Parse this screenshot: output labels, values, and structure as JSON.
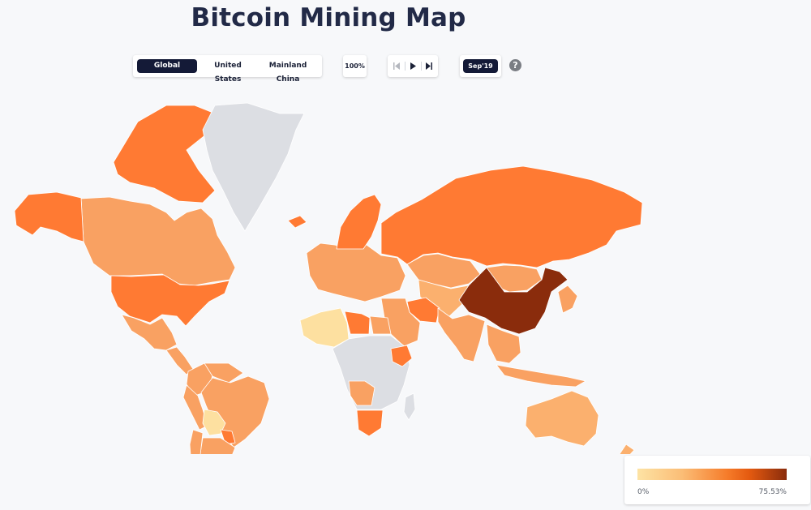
{
  "header": {
    "title": "Bitcoin Mining Map"
  },
  "region_tabs": [
    {
      "label": "Global",
      "active": true
    },
    {
      "label": "United States",
      "active": false
    },
    {
      "label": "Mainland China",
      "active": false
    }
  ],
  "zoom": {
    "value": "100%"
  },
  "playback": {
    "buttons": [
      "skip-back-icon",
      "play-icon",
      "skip-forward-icon"
    ],
    "date_label": "Sep'19"
  },
  "help": {
    "label": "?"
  },
  "legend": {
    "min_label": "0%",
    "max_label": "75.53%"
  },
  "colors": {
    "no_data": "#dcdee3",
    "very_low": "#fde0a0",
    "low": "#fbb06e",
    "medium": "#f9a162",
    "high": "#ff7a33",
    "very_high": "#8a2c0c",
    "ui_dark": "#141a37"
  },
  "countries": [
    {
      "name": "Canada",
      "level": "medium"
    },
    {
      "name": "Canadian Arctic Islands",
      "level": "high"
    },
    {
      "name": "Alaska",
      "level": "high"
    },
    {
      "name": "United States",
      "level": "high"
    },
    {
      "name": "Mexico",
      "level": "medium"
    },
    {
      "name": "Central America",
      "level": "medium"
    },
    {
      "name": "Greenland",
      "level": "no_data"
    },
    {
      "name": "Iceland",
      "level": "high"
    },
    {
      "name": "Colombia",
      "level": "medium"
    },
    {
      "name": "Venezuela",
      "level": "medium"
    },
    {
      "name": "Brazil",
      "level": "medium"
    },
    {
      "name": "Peru",
      "level": "medium"
    },
    {
      "name": "Bolivia",
      "level": "very_low"
    },
    {
      "name": "Paraguay",
      "level": "high"
    },
    {
      "name": "Argentina",
      "level": "medium"
    },
    {
      "name": "Chile",
      "level": "medium"
    },
    {
      "name": "Europe",
      "level": "medium"
    },
    {
      "name": "Scandinavia",
      "level": "high"
    },
    {
      "name": "Russia",
      "level": "high"
    },
    {
      "name": "Kazakhstan",
      "level": "medium"
    },
    {
      "name": "Central Asia",
      "level": "low"
    },
    {
      "name": "Mongolia",
      "level": "medium"
    },
    {
      "name": "China",
      "level": "very_high"
    },
    {
      "name": "Iran",
      "level": "high"
    },
    {
      "name": "Middle East",
      "level": "medium"
    },
    {
      "name": "South Asia",
      "level": "medium"
    },
    {
      "name": "Southeast Asia",
      "level": "medium"
    },
    {
      "name": "Japan",
      "level": "medium"
    },
    {
      "name": "Indonesia",
      "level": "medium"
    },
    {
      "name": "Australia",
      "level": "low"
    },
    {
      "name": "New Zealand",
      "level": "low"
    },
    {
      "name": "North Africa West",
      "level": "very_low"
    },
    {
      "name": "Libya",
      "level": "high"
    },
    {
      "name": "Egypt",
      "level": "medium"
    },
    {
      "name": "Central Africa",
      "level": "no_data"
    },
    {
      "name": "Ethiopia",
      "level": "high"
    },
    {
      "name": "Southern Africa",
      "level": "medium"
    },
    {
      "name": "South Africa",
      "level": "high"
    },
    {
      "name": "Madagascar",
      "level": "no_data"
    }
  ]
}
